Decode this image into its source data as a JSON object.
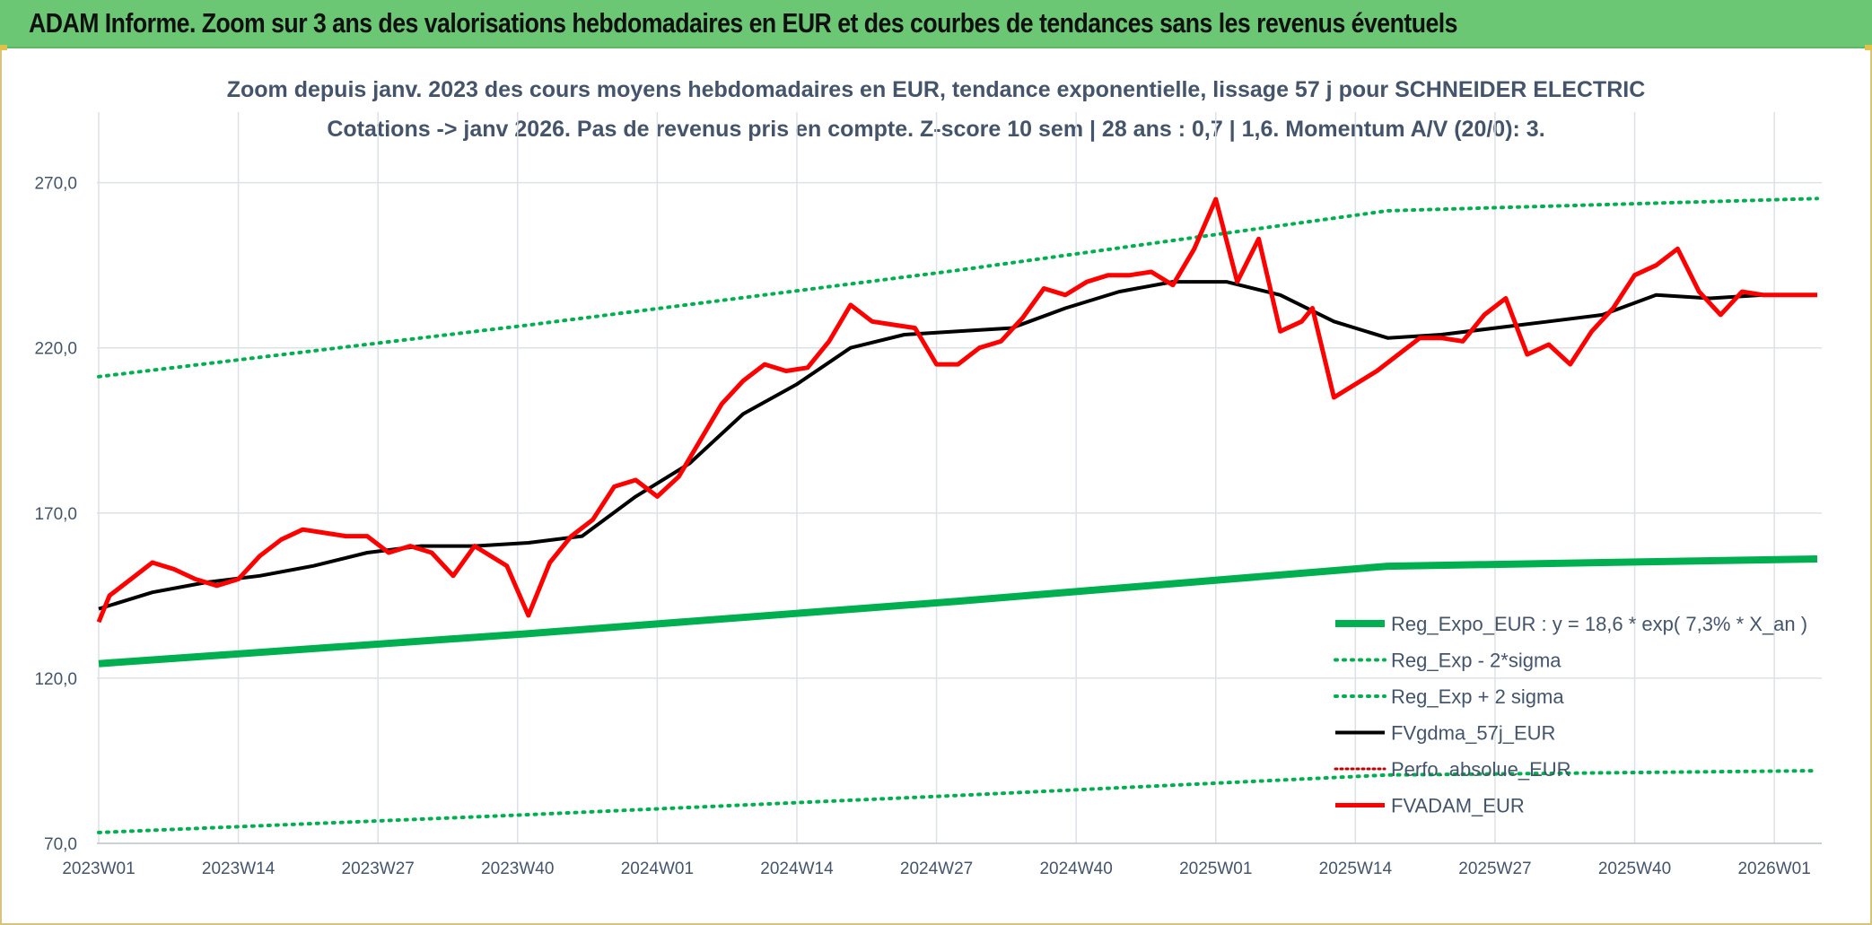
{
  "banner": {
    "title": "ADAM Informe. Zoom sur 3 ans des valorisations hebdomadaires en EUR et des courbes de tendances sans les revenus éventuels"
  },
  "chart_data": {
    "type": "line",
    "title": "Zoom depuis janv. 2023 des cours moyens hebdomadaires en EUR, tendance exponentielle, lissage 57 j pour SCHNEIDER ELECTRIC",
    "subtitle": "Cotations -> janv 2026. Pas de revenus pris en compte. Z-score 10 sem | 28 ans : 0,7 | 1,6. Momentum A/V (20/0): 3.",
    "xlabel": "",
    "ylabel": "",
    "ylim": [
      70,
      290
    ],
    "y_ticks": [
      70,
      120,
      170,
      220,
      270
    ],
    "y_tick_labels": [
      "70,0",
      "120,0",
      "170,0",
      "220,0",
      "270,0"
    ],
    "x_ticks": [
      0,
      13,
      26,
      39,
      52,
      65,
      78,
      91,
      104,
      117,
      130,
      143,
      156
    ],
    "x_tick_labels": [
      "2023W01",
      "2023W14",
      "2023W27",
      "2023W40",
      "2024W01",
      "2024W14",
      "2024W27",
      "2024W40",
      "2025W01",
      "2025W14",
      "2025W27",
      "2025W40",
      "2026W01"
    ],
    "x_range": [
      0,
      160
    ],
    "grid": true,
    "legend_position": "bottom-right",
    "colors": {
      "reg_expo": "#00b050",
      "band": "#00b050",
      "fvgdma": "#000000",
      "perfo": "#c00000",
      "fvadam": "#ff0000",
      "grid": "#dde1e6",
      "text": "#44546a"
    },
    "series": [
      {
        "name": "Reg_Expo_EUR : y = 18,6 * exp( 7,3% *  X_an )",
        "style": "solid-thick",
        "x": [
          0,
          40,
          80,
          120,
          160
        ],
        "values": [
          124.4,
          133.5,
          143.3,
          153.9,
          156.1
        ]
      },
      {
        "name": "Reg_Exp - 2*sigma",
        "style": "dotted",
        "x": [
          0,
          40,
          80,
          120,
          160
        ],
        "values": [
          73.3,
          78.7,
          84.5,
          90.7,
          92.0
        ]
      },
      {
        "name": "Reg_Exp + 2 sigma",
        "style": "dotted",
        "x": [
          0,
          40,
          80,
          120,
          160
        ],
        "values": [
          211.3,
          226.9,
          243.5,
          261.5,
          265.2
        ]
      },
      {
        "name": "FVgdma_57j_EUR",
        "style": "solid",
        "x": [
          0,
          5,
          10,
          15,
          20,
          25,
          30,
          35,
          40,
          45,
          50,
          55,
          60,
          65,
          70,
          75,
          80,
          85,
          90,
          95,
          100,
          105,
          110,
          115,
          120,
          125,
          130,
          135,
          140,
          145,
          150,
          155,
          160
        ],
        "values": [
          141,
          146,
          149,
          151,
          154,
          158,
          160,
          160,
          161,
          163,
          175,
          185,
          200,
          209,
          220,
          224,
          225,
          226,
          232,
          237,
          240,
          240,
          236,
          228,
          223,
          224,
          226,
          228,
          230,
          236,
          235,
          236,
          236
        ]
      },
      {
        "name": "Perfo. absolue_EUR",
        "style": "dotted",
        "x": [],
        "values": []
      },
      {
        "name": "FVADAM_EUR",
        "style": "solid-thick",
        "x": [
          0,
          1,
          3,
          5,
          7,
          9,
          11,
          13,
          15,
          17,
          19,
          21,
          23,
          25,
          27,
          29,
          31,
          33,
          35,
          38,
          40,
          42,
          44,
          46,
          48,
          50,
          52,
          54,
          56,
          58,
          60,
          62,
          64,
          66,
          68,
          70,
          72,
          74,
          76,
          78,
          80,
          82,
          84,
          86,
          88,
          90,
          92,
          94,
          96,
          98,
          100,
          102,
          104,
          106,
          108,
          110,
          112,
          113,
          115,
          117,
          119,
          121,
          123,
          125,
          127,
          129,
          131,
          133,
          135,
          137,
          139,
          141,
          143,
          145,
          147,
          149,
          151,
          153,
          155,
          157,
          160
        ],
        "values": [
          137,
          145,
          150,
          155,
          153,
          150,
          148,
          150,
          157,
          162,
          165,
          164,
          163,
          163,
          158,
          160,
          158,
          151,
          160,
          154,
          139,
          155,
          163,
          168,
          178,
          180,
          175,
          181,
          192,
          203,
          210,
          215,
          213,
          214,
          222,
          233,
          228,
          227,
          226,
          215,
          215,
          220,
          222,
          229,
          238,
          236,
          240,
          242,
          242,
          243,
          239,
          250,
          265,
          240,
          253,
          225,
          228,
          232,
          205,
          209,
          213,
          218,
          223,
          223,
          222,
          230,
          235,
          218,
          221,
          215,
          225,
          232,
          242,
          245,
          250,
          237,
          230,
          237,
          236,
          236,
          236
        ]
      }
    ]
  }
}
